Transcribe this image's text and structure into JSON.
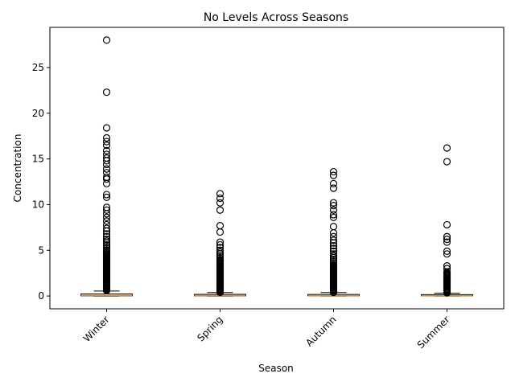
{
  "chart_data": {
    "type": "boxplot",
    "title": "No Levels Across Seasons",
    "xlabel": "Season",
    "ylabel": "Concentration",
    "ylim": [
      -1.4,
      29.4
    ],
    "yticks": [
      0,
      5,
      10,
      15,
      20,
      25
    ],
    "grid": false,
    "categories": [
      "Winter",
      "Spring",
      "Autumn",
      "Summer"
    ],
    "colors": {
      "box": "#000000",
      "median": "#ff7f0e",
      "flier": "#000000"
    },
    "boxes": [
      {
        "category": "Winter",
        "whisker_low": 0.0,
        "q1": 0.02,
        "median": 0.06,
        "q3": 0.22,
        "whisker_high": 0.55,
        "outliers": [
          0.6,
          0.7,
          0.8,
          0.9,
          1.0,
          1.1,
          1.2,
          1.3,
          1.4,
          1.5,
          1.6,
          1.7,
          1.8,
          1.9,
          2.0,
          2.1,
          2.2,
          2.3,
          2.4,
          2.5,
          2.6,
          2.7,
          2.8,
          2.9,
          3.0,
          3.1,
          3.2,
          3.3,
          3.4,
          3.5,
          3.6,
          3.7,
          3.8,
          3.9,
          4.0,
          4.1,
          4.2,
          4.3,
          4.4,
          4.5,
          4.6,
          4.7,
          4.8,
          4.9,
          5.0,
          5.2,
          5.4,
          5.6,
          5.8,
          6.0,
          6.2,
          6.5,
          6.8,
          7.1,
          7.4,
          7.8,
          8.2,
          8.6,
          9.0,
          9.4,
          9.7,
          10.8,
          11.1,
          12.3,
          12.8,
          13.0,
          13.5,
          13.9,
          14.4,
          14.8,
          15.1,
          15.5,
          15.9,
          16.5,
          16.9,
          17.3,
          18.4,
          22.3,
          28.0
        ]
      },
      {
        "category": "Spring",
        "whisker_low": 0.0,
        "q1": 0.02,
        "median": 0.05,
        "q3": 0.18,
        "whisker_high": 0.38,
        "outliers": [
          0.4,
          0.5,
          0.6,
          0.7,
          0.8,
          0.9,
          1.0,
          1.1,
          1.2,
          1.3,
          1.4,
          1.5,
          1.6,
          1.7,
          1.8,
          1.9,
          2.0,
          2.1,
          2.2,
          2.3,
          2.4,
          2.5,
          2.6,
          2.7,
          2.8,
          2.9,
          3.0,
          3.1,
          3.2,
          3.3,
          3.4,
          3.5,
          3.6,
          3.7,
          3.8,
          3.9,
          4.0,
          4.2,
          4.4,
          4.6,
          4.8,
          5.0,
          5.3,
          5.6,
          5.9,
          7.0,
          7.7,
          9.4,
          10.2,
          10.7,
          11.2
        ]
      },
      {
        "category": "Autumn",
        "whisker_low": 0.0,
        "q1": 0.02,
        "median": 0.04,
        "q3": 0.17,
        "whisker_high": 0.38,
        "outliers": [
          0.4,
          0.5,
          0.6,
          0.7,
          0.8,
          0.9,
          1.0,
          1.1,
          1.2,
          1.3,
          1.4,
          1.5,
          1.6,
          1.7,
          1.8,
          1.9,
          2.0,
          2.1,
          2.2,
          2.3,
          2.4,
          2.5,
          2.6,
          2.7,
          2.8,
          2.9,
          3.0,
          3.1,
          3.2,
          3.3,
          3.4,
          3.6,
          3.8,
          4.0,
          4.2,
          4.4,
          4.6,
          4.9,
          5.2,
          5.5,
          5.8,
          6.1,
          6.5,
          6.9,
          7.6,
          8.6,
          8.9,
          9.4,
          9.9,
          10.2,
          11.8,
          12.3,
          13.2,
          13.6
        ]
      },
      {
        "category": "Summer",
        "whisker_low": 0.0,
        "q1": 0.02,
        "median": 0.04,
        "q3": 0.15,
        "whisker_high": 0.3,
        "outliers": [
          0.35,
          0.45,
          0.55,
          0.65,
          0.75,
          0.85,
          0.95,
          1.05,
          1.15,
          1.25,
          1.35,
          1.45,
          1.55,
          1.65,
          1.75,
          1.85,
          1.95,
          2.05,
          2.15,
          2.25,
          2.35,
          2.45,
          2.55,
          2.65,
          3.0,
          3.3,
          4.6,
          4.9,
          5.9,
          6.2,
          6.5,
          7.8,
          14.7,
          16.2
        ]
      }
    ]
  }
}
